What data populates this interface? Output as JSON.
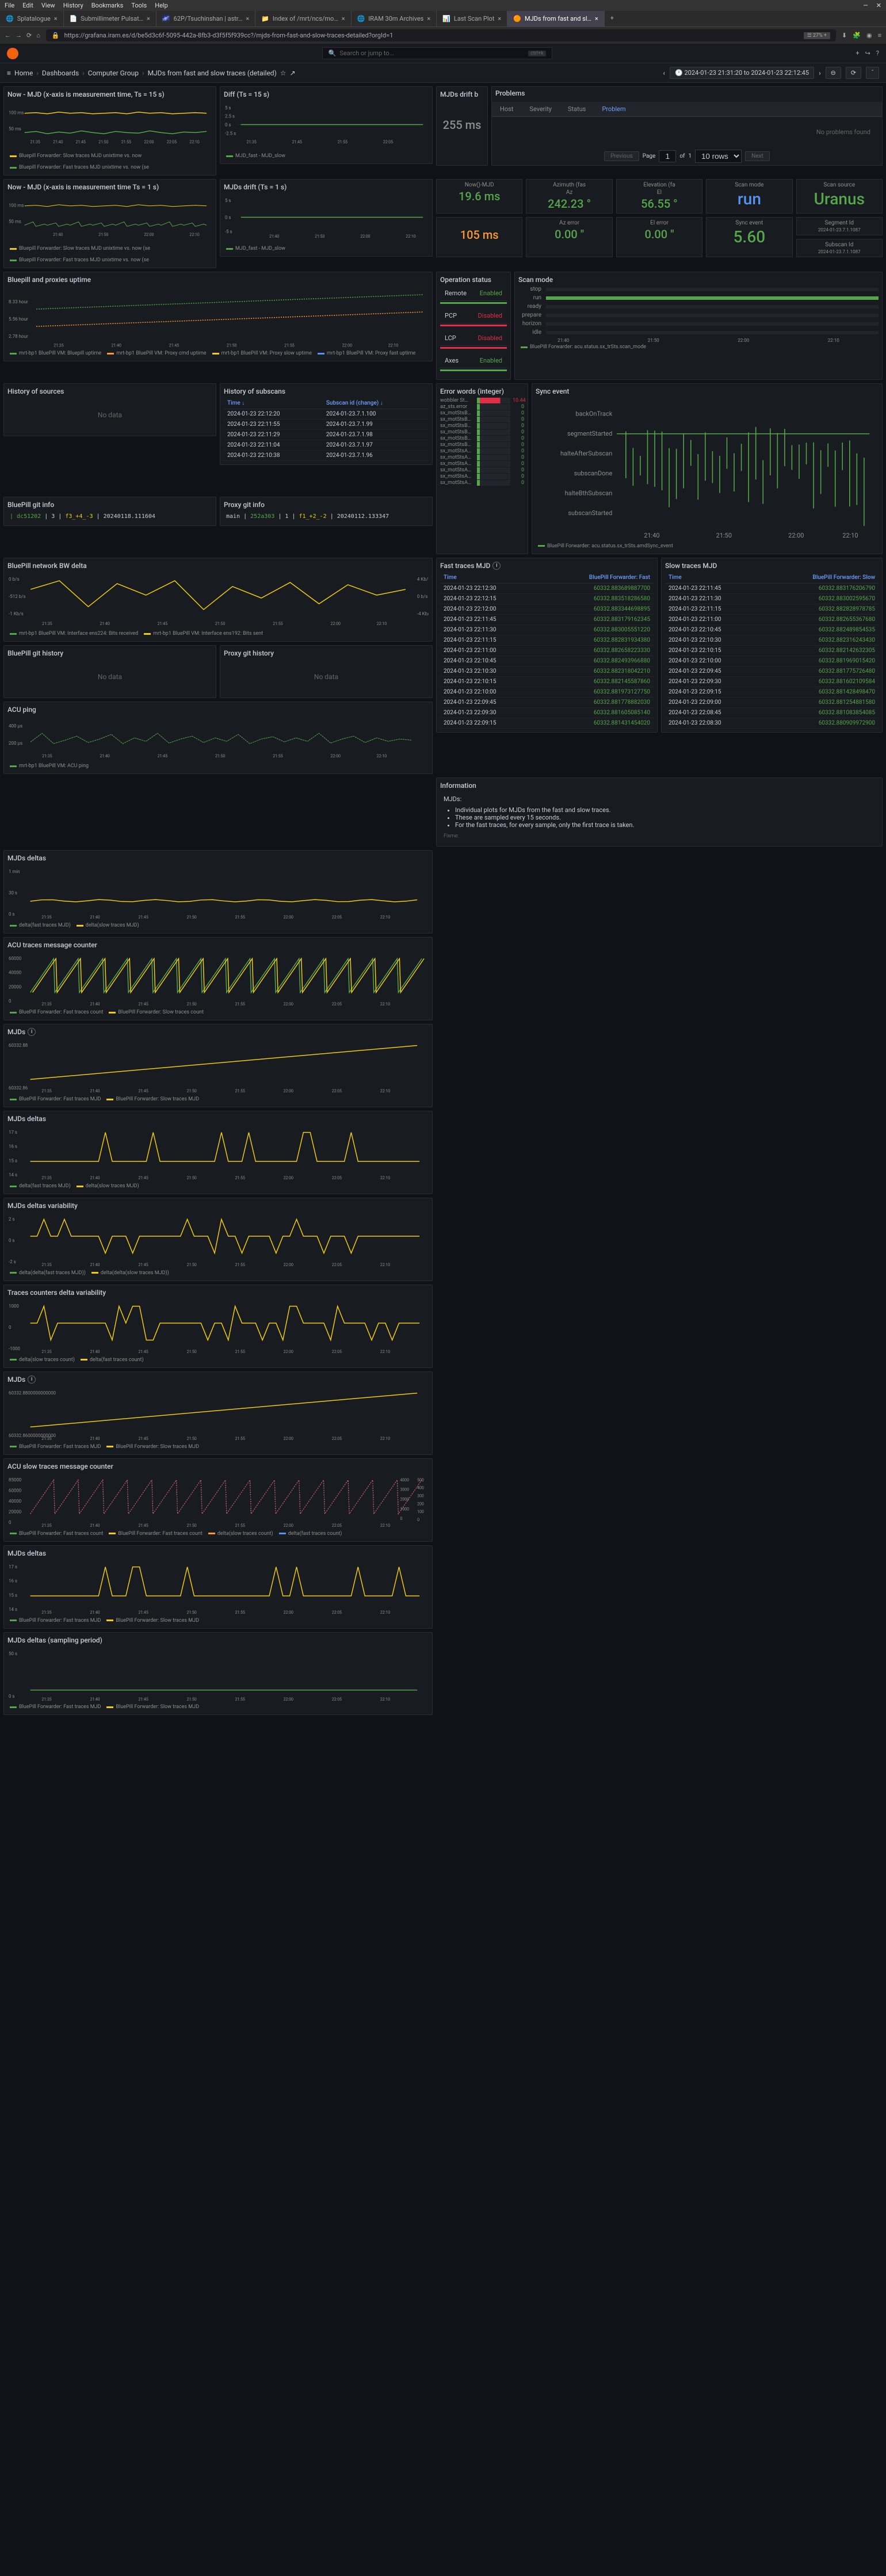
{
  "browser": {
    "menu": [
      "File",
      "Edit",
      "View",
      "History",
      "Bookmarks",
      "Tools",
      "Help"
    ],
    "tabs": [
      {
        "label": "Splatalogue",
        "active": false
      },
      {
        "label": "Submillimeter Pulsat…",
        "active": false
      },
      {
        "label": "62P/Tsuchinshan | astr…",
        "active": false
      },
      {
        "label": "Index of /mrt/ncs/mo…",
        "active": false
      },
      {
        "label": "IRAM 30m Archives",
        "active": false
      },
      {
        "label": "Last Scan Plot",
        "active": false
      },
      {
        "label": "MJDs from fast and sl…",
        "active": true
      }
    ],
    "url": "https://grafana.iram.es/d/be5d3c6f-5095-442a-8fb3-d3f5f5f939cc?/mjds-from-fast-and-slow-traces-detailed?orgId=1"
  },
  "grafana": {
    "search_placeholder": "Search or jump to...",
    "breadcrumbs": [
      "Home",
      "Dashboards",
      "Computer Group",
      "MJDs from fast and slow traces (detailed)"
    ],
    "time_range": "2024-01-23 21:31:20 to 2024-01-23 22:12:45"
  },
  "panels": {
    "now_mjd_15s": "Now - MJD (x-axis is measurement time, Ts = 15 s)",
    "now_mjd_1s": "Now - MJD (x-axis is measurement time Ts = 1 s)",
    "diff_15s": "Diff (Ts = 15 s)",
    "mjds_drift_1s": "MJDs drift (Ts = 1 s)",
    "mjds_drift_title": "MJDs drift b",
    "drift_value": "255 ms",
    "problems_title": "Problems",
    "prob_tabs": [
      "Host",
      "Severity",
      "Status",
      "Problem"
    ],
    "no_problems": "No problems found",
    "pagination": {
      "prev": "Previous",
      "page": "Page",
      "page_num": "1",
      "of": "of",
      "total": "1",
      "rows": "10 rows",
      "next": "Next"
    },
    "stats_r1": [
      {
        "title": "Now()-MJD",
        "value": "19.6 ms",
        "cls": "green"
      },
      {
        "title": "Azimuth (fas",
        "sub": "Az",
        "value": "242.23 °",
        "cls": "green"
      },
      {
        "title": "Elevation (fa",
        "sub": "El",
        "value": "56.55 °",
        "cls": "green"
      },
      {
        "title": "Scan mode",
        "value": "run",
        "cls": "blue big"
      },
      {
        "title": "Scan source",
        "value": "Uranus",
        "cls": "green big"
      }
    ],
    "stats_r2": [
      {
        "title": "",
        "value": "105 ms",
        "cls": "orange"
      },
      {
        "title": "Az error",
        "value": "0.00 \"",
        "cls": "green"
      },
      {
        "title": "El error",
        "value": "0.00 \"",
        "cls": "green"
      },
      {
        "title": "Sync event",
        "value": "5.60",
        "cls": "green big"
      },
      {
        "title": "Segment Id",
        "value": "2024-01-23.7.1.1087",
        "cls": "gray small"
      },
      {
        "title": "Subscan Id",
        "value": "2024-01-23.7.1.1087",
        "cls": "gray small"
      }
    ],
    "bluepill_proxies": "Bluepill and proxies uptime",
    "bp_y": [
      "8.33 hour",
      "5.56 hour",
      "2.78 hour"
    ],
    "op_status_title": "Operation status",
    "ops": [
      {
        "name": "Remote",
        "val": "Enabled",
        "cls": "enabled"
      },
      {
        "name": "PCP",
        "val": "Disabled",
        "cls": "disabled"
      },
      {
        "name": "LCP",
        "val": "Disabled",
        "cls": "disabled"
      },
      {
        "name": "Axes",
        "val": "Enabled",
        "cls": "enabled"
      }
    ],
    "scan_mode_title": "Scan mode",
    "scan_modes": [
      {
        "label": "stop",
        "active": false
      },
      {
        "label": "run",
        "active": true
      },
      {
        "label": "ready",
        "active": false
      },
      {
        "label": "prepare",
        "active": false
      },
      {
        "label": "horizon",
        "active": false
      },
      {
        "label": "idle",
        "active": false
      }
    ],
    "history_sources": "History of sources",
    "history_subscans": "History of subscans",
    "subscan_cols": [
      "Time ↓",
      "Subscan id (change) ↓"
    ],
    "subscan_rows": [
      [
        "2024-01-23 22:12:20",
        "2024-01-23.7.1.100"
      ],
      [
        "2024-01-23 22:11:55",
        "2024-01-23.7.1.99"
      ],
      [
        "2024-01-23 22:11:29",
        "2024-01-23.7.1.98"
      ],
      [
        "2024-01-23 22:11:04",
        "2024-01-23.7.1.97"
      ],
      [
        "2024-01-23 22:10:38",
        "2024-01-23.7.1.96"
      ]
    ],
    "error_words_title": "Error words (integer)",
    "error_words": [
      {
        "label": "wobbler St…",
        "val": "10.44",
        "special": true
      },
      {
        "label": "az_sts.error",
        "val": "0"
      },
      {
        "label": "sx_motStsB…",
        "val": "0"
      },
      {
        "label": "sx_motStsB…",
        "val": "0"
      },
      {
        "label": "sx_motStsB…",
        "val": "0"
      },
      {
        "label": "sx_motStsB…",
        "val": "0"
      },
      {
        "label": "sx_motStsB…",
        "val": "0"
      },
      {
        "label": "sx_motStsB…",
        "val": "0"
      },
      {
        "label": "sx_motStsA…",
        "val": "0"
      },
      {
        "label": "sx_motStsA…",
        "val": "0"
      },
      {
        "label": "sx_motStsA…",
        "val": "0"
      },
      {
        "label": "sx_motStsA…",
        "val": "0"
      },
      {
        "label": "sx_motStsA…",
        "val": "0"
      },
      {
        "label": "sx_motStsA…",
        "val": "0"
      }
    ],
    "sync_event_title": "Sync event",
    "sync_labels": [
      "backOnTrack",
      "segmentStarted",
      "halteAfterSubscan",
      "subscanDone",
      "halteBthSubscan",
      "subscanStarted"
    ],
    "bp_git_title": "BluePill git info",
    "bp_git": "| dc51202 | 3 | f3_+4_-3 | 20240118.111604",
    "proxy_git_title": "Proxy git info",
    "proxy_git": "main | 252a303 | 1 | f1_+2_-2 | 20240112.133347",
    "bp_bw_title": "BluePill network BW delta",
    "bp_githist_title": "BluePill git history",
    "proxy_githist_title": "Proxy git history",
    "acu_ping_title": "ACU ping",
    "fast_traces_title": "Fast traces MJD",
    "slow_traces_title": "Slow traces MJD",
    "fast_cols": [
      "Time",
      "BluePill Forwarder: Fast"
    ],
    "slow_cols": [
      "Time",
      "BluePill Forwarder: Slow"
    ],
    "fast_rows": [
      [
        "2024-01-23 22:12:30",
        "60332.883689887700"
      ],
      [
        "2024-01-23 22:12:15",
        "60332.883518286580"
      ],
      [
        "2024-01-23 22:12:00",
        "60332.883344698895"
      ],
      [
        "2024-01-23 22:11:45",
        "60332.883179162345"
      ],
      [
        "2024-01-23 22:11:30",
        "60332.883005551220"
      ],
      [
        "2024-01-23 22:11:15",
        "60332.882831934380"
      ],
      [
        "2024-01-23 22:11:00",
        "60332.882658223330"
      ],
      [
        "2024-01-23 22:10:45",
        "60332.882493966880"
      ],
      [
        "2024-01-23 22:10:30",
        "60332.882318042210"
      ],
      [
        "2024-01-23 22:10:15",
        "60332.882145587860"
      ],
      [
        "2024-01-23 22:10:00",
        "60332.881973127750"
      ],
      [
        "2024-01-23 22:09:45",
        "60332.881778882030"
      ],
      [
        "2024-01-23 22:09:30",
        "60332.881605085140"
      ],
      [
        "2024-01-23 22:09:15",
        "60332.881431454020"
      ]
    ],
    "slow_rows": [
      [
        "2024-01-23 22:11:45",
        "60332.883176206790"
      ],
      [
        "2024-01-23 22:11:30",
        "60332.883002595670"
      ],
      [
        "2024-01-23 22:11:15",
        "60332.882828978785"
      ],
      [
        "2024-01-23 22:11:00",
        "60332.882655367680"
      ],
      [
        "2024-01-23 22:10:45",
        "60332.882489854535"
      ],
      [
        "2024-01-23 22:10:30",
        "60332.882316243430"
      ],
      [
        "2024-01-23 22:10:15",
        "60332.882142632305"
      ],
      [
        "2024-01-23 22:10:00",
        "60332.881969015420"
      ],
      [
        "2024-01-23 22:09:45",
        "60332.881775726480"
      ],
      [
        "2024-01-23 22:09:30",
        "60332.881602109584"
      ],
      [
        "2024-01-23 22:09:15",
        "60332.881428498470"
      ],
      [
        "2024-01-23 22:09:00",
        "60332.881254881580"
      ],
      [
        "2024-01-23 22:08:45",
        "60332.881083854085"
      ],
      [
        "2024-01-23 22:08:30",
        "60332.880909972900"
      ]
    ],
    "info_title": "Information",
    "info_heading": "MJDs:",
    "info_bullets": [
      "Individual plots for MJDs from the fast and slow traces.",
      "These are sampled every 15 seconds.",
      "For the fast traces, for every sample, only the first trace is taken."
    ],
    "info_fixme": "Fixme:",
    "bottom_panels": [
      "MJDs deltas",
      "ACU traces message counter",
      "MJDs",
      "MJDs deltas",
      "MJDs deltas variability",
      "Traces counters delta variability",
      "MJDs",
      "ACU slow traces message counter",
      "MJDs deltas",
      "MJDs deltas (sampling period)"
    ],
    "no_data": "No data",
    "x_ticks": [
      "21:35",
      "21:40",
      "21:45",
      "21:50",
      "21:55",
      "22:00",
      "22:05",
      "22:10"
    ],
    "colors": {
      "green": "#56a64b",
      "yellow": "#f2cc0c",
      "orange": "#ff9830",
      "blue": "#5794f2",
      "red": "#e02f44",
      "purple": "#b877d9"
    }
  }
}
